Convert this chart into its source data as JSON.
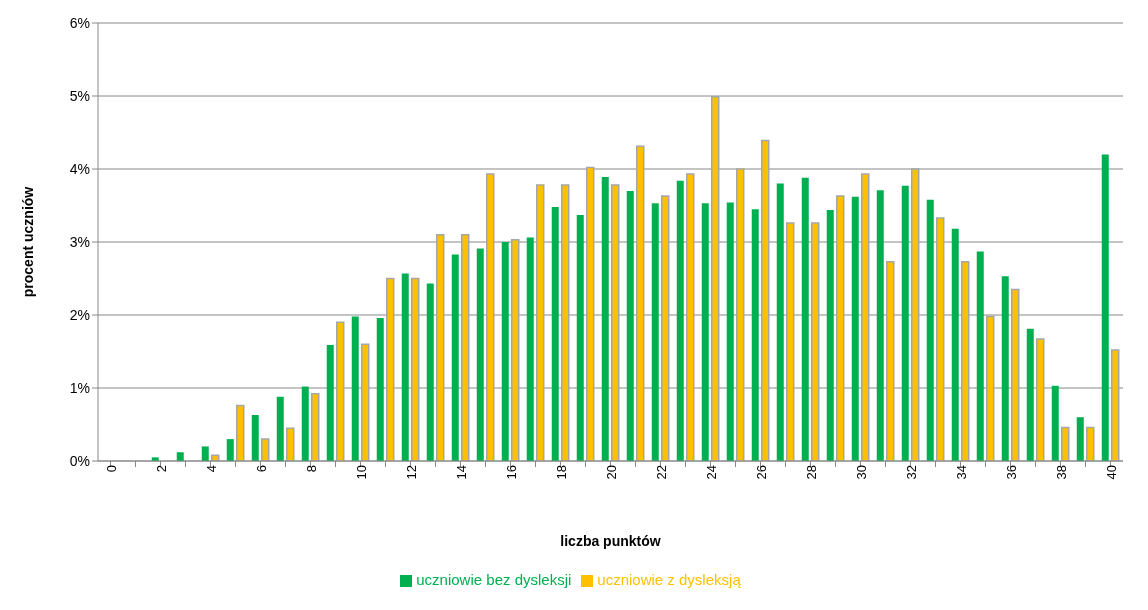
{
  "chart_data": {
    "type": "bar",
    "xlabel": "liczba punktów",
    "ylabel": "procent  uczniów",
    "categories": [
      "0",
      null,
      "2",
      null,
      "4",
      null,
      "6",
      null,
      "8",
      null,
      "10",
      null,
      "12",
      null,
      "14",
      null,
      "16",
      null,
      "18",
      null,
      "20",
      null,
      "22",
      null,
      "24",
      null,
      "26",
      null,
      "28",
      null,
      "30",
      null,
      "32",
      null,
      "34",
      null,
      "36",
      null,
      "38",
      null,
      "40"
    ],
    "series": [
      {
        "name": "uczniowie bez dysleksji",
        "color": "#00b050",
        "values": [
          0,
          0,
          0.05,
          0.12,
          0.2,
          0.3,
          0.63,
          0.88,
          1.02,
          1.59,
          1.98,
          1.96,
          2.57,
          2.43,
          2.83,
          2.91,
          3.0,
          3.06,
          3.48,
          3.37,
          3.89,
          3.7,
          3.53,
          3.84,
          3.53,
          3.54,
          3.45,
          3.8,
          3.88,
          3.44,
          3.62,
          3.71,
          3.77,
          3.58,
          3.18,
          2.87,
          2.53,
          1.81,
          1.03,
          0.6,
          4.2
        ]
      },
      {
        "name": "uczniowie z dysleksją",
        "color": "#ffc000",
        "values": [
          0,
          0,
          0,
          0,
          0.08,
          0.76,
          0.3,
          0.45,
          0.92,
          1.9,
          1.6,
          2.5,
          2.5,
          3.1,
          3.1,
          3.93,
          3.03,
          3.78,
          3.78,
          4.02,
          3.78,
          4.31,
          3.63,
          3.93,
          4.99,
          4.0,
          4.39,
          3.26,
          3.26,
          3.63,
          3.93,
          2.73,
          4.0,
          3.33,
          2.73,
          1.98,
          2.35,
          1.67,
          0.46,
          0.46,
          1.52
        ]
      }
    ],
    "ylim": [
      0,
      6
    ],
    "yticks": [
      {
        "value": 0,
        "label": "0%"
      },
      {
        "value": 1,
        "label": "1%"
      },
      {
        "value": 2,
        "label": "2%"
      },
      {
        "value": 3,
        "label": "3%"
      },
      {
        "value": 4,
        "label": "4%"
      },
      {
        "value": 5,
        "label": "5%"
      },
      {
        "value": 6,
        "label": "6%"
      }
    ],
    "grid": "y",
    "legend": "bottom"
  }
}
